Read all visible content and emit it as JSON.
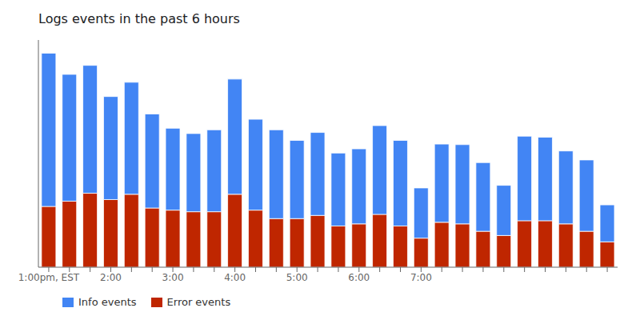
{
  "chart_data": {
    "type": "bar",
    "title": "Logs events in the past 6 hours",
    "categories": [
      "1:00pm, EST",
      null,
      null,
      "2:00",
      null,
      null,
      "3:00",
      null,
      null,
      "4:00",
      null,
      null,
      "5:00",
      null,
      null,
      "6:00",
      null,
      null,
      "7:00",
      null,
      null,
      null,
      null,
      null,
      null,
      null,
      null,
      null
    ],
    "series": [
      {
        "name": "Error events",
        "color": "#bf2600",
        "values": [
          115,
          125,
          140,
          128,
          138,
          112,
          108,
          105,
          105,
          138,
          108,
          92,
          92,
          98,
          78,
          82,
          100,
          78,
          55,
          85,
          82,
          68,
          60,
          88,
          88,
          82,
          68,
          48
        ]
      },
      {
        "name": "Info events",
        "color": "#4285F4",
        "values": [
          290,
          240,
          242,
          195,
          212,
          178,
          155,
          148,
          155,
          218,
          172,
          168,
          148,
          157,
          138,
          142,
          168,
          162,
          95,
          148,
          150,
          130,
          95,
          160,
          158,
          138,
          135,
          70
        ]
      }
    ],
    "stacked": true,
    "ylim": [
      0,
      430
    ],
    "grid": false,
    "legend": "lower left",
    "tick_labels": "x"
  }
}
